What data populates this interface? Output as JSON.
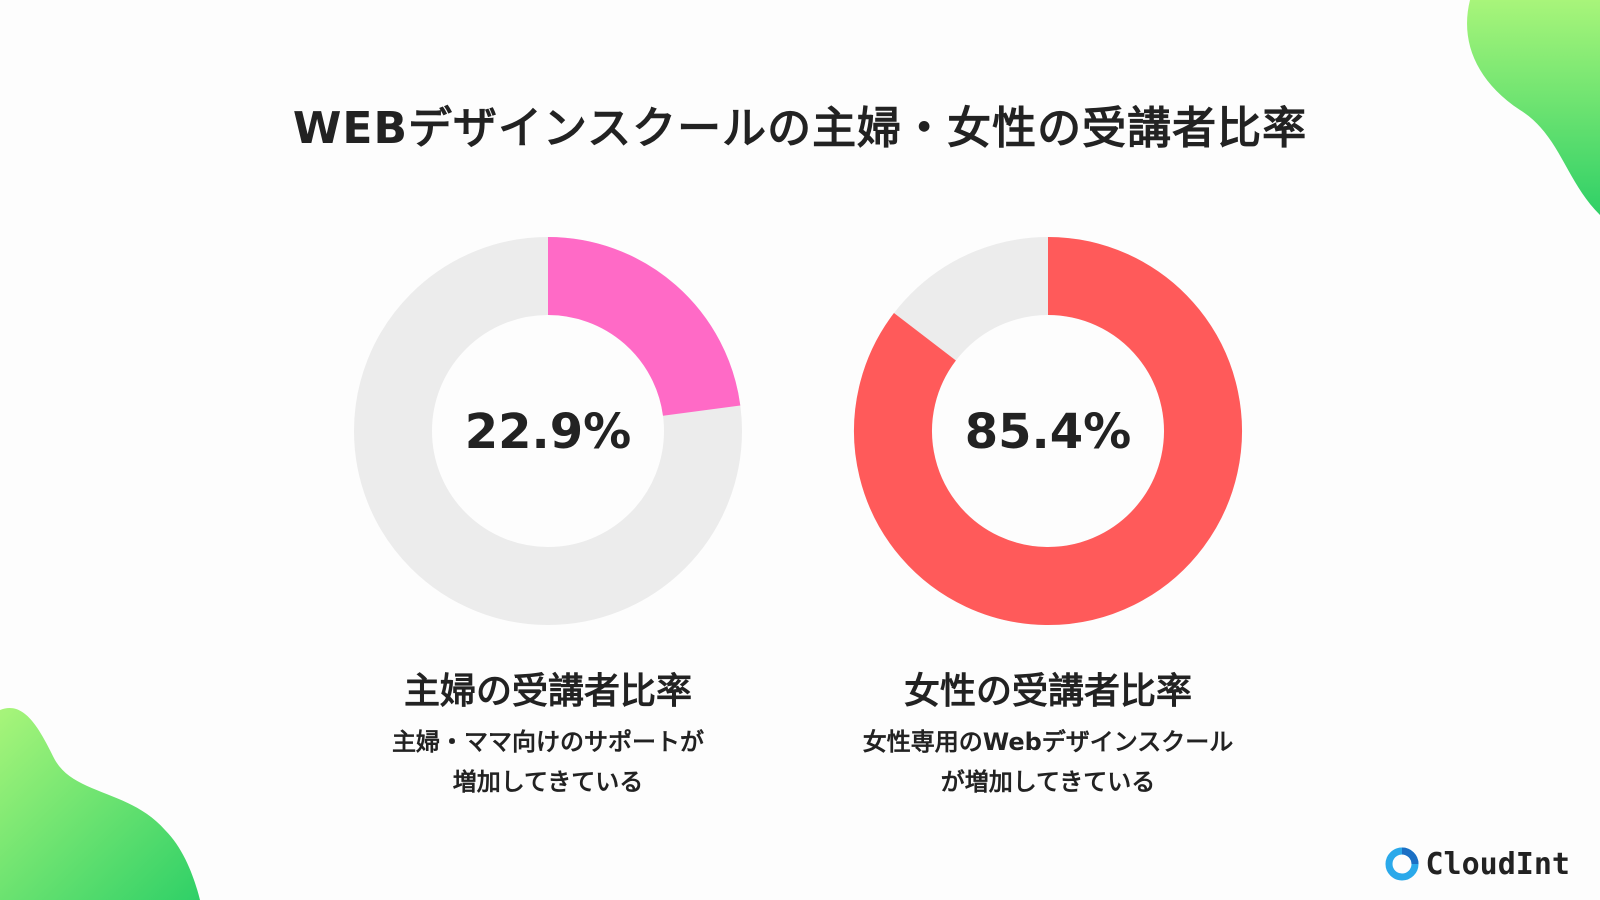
{
  "title": "WEBデザインスクールの主婦・女性の受講者比率",
  "colors": {
    "track": "#ececec",
    "housewife": "#ff6ac6",
    "female": "#ff5a5a",
    "blob_green_light": "#a8f57a",
    "blob_green_dark": "#2fd067",
    "logo_blue": "#2aa9ea"
  },
  "chart_data": [
    {
      "type": "pie",
      "variant": "donut",
      "value": 22.9,
      "value_label": "22.9%",
      "title": "主婦の受講者比率",
      "description_lines": [
        "主婦・ママ向けのサポートが",
        "増加してきている"
      ],
      "color": "#ff6ac6"
    },
    {
      "type": "pie",
      "variant": "donut",
      "value": 85.4,
      "value_label": "85.4%",
      "title": "女性の受講者比率",
      "description_lines": [
        "女性専用のWebデザインスクール",
        "が増加してきている"
      ],
      "color": "#ff5a5a"
    }
  ],
  "logo": {
    "text": "CloudInt",
    "icon": "cloudint-ring-icon"
  }
}
